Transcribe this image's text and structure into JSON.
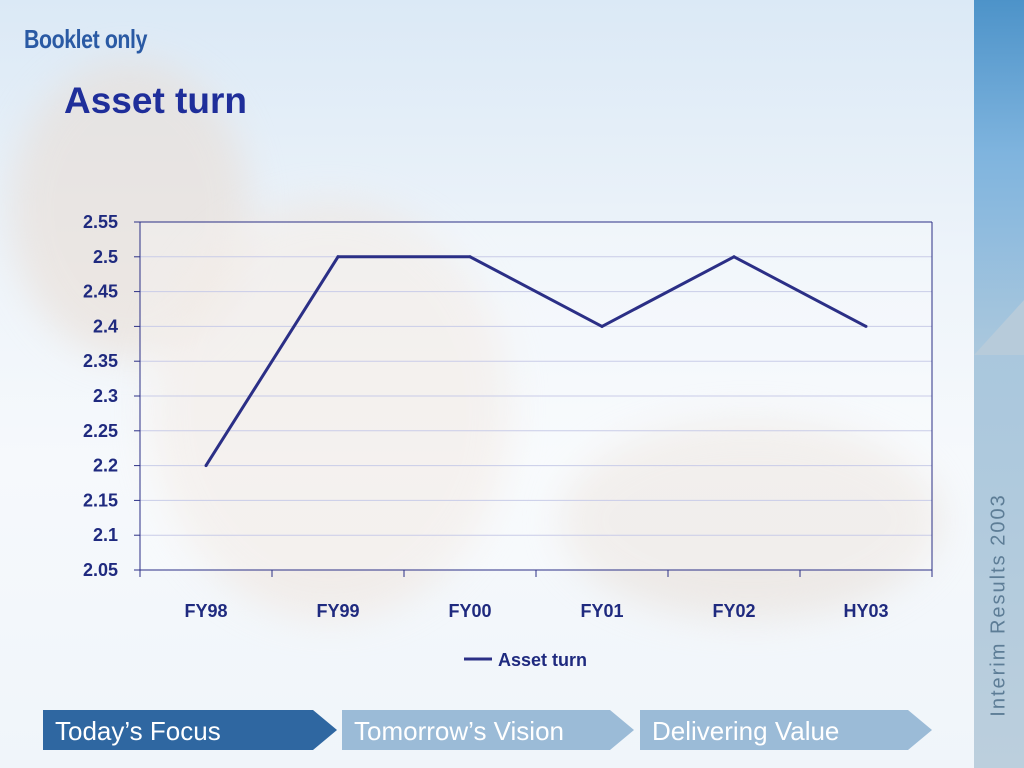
{
  "header": {
    "booklet_label": "Booklet only",
    "title": "Asset turn"
  },
  "side_banner": {
    "text": "Interim Results 2003"
  },
  "nav": [
    {
      "label": "Today’s Focus",
      "active": true
    },
    {
      "label": "Tomorrow’s Vision",
      "active": false
    },
    {
      "label": "Delivering Value",
      "active": false
    }
  ],
  "colors": {
    "title": "#1f2e9a",
    "series": "#2b2f86",
    "nav_active": "#2f67a1",
    "nav_inactive": "#9bbbd7",
    "side_band": "#7fb4de"
  },
  "chart_data": {
    "type": "line",
    "title": "Asset turn",
    "categories": [
      "FY98",
      "FY99",
      "FY00",
      "FY01",
      "FY02",
      "HY03"
    ],
    "series": [
      {
        "name": "Asset turn",
        "values": [
          2.2,
          2.5,
          2.5,
          2.4,
          2.5,
          2.4
        ]
      }
    ],
    "ylim": [
      2.05,
      2.55
    ],
    "ytick_step": 0.05,
    "yticks": [
      "2.55",
      "2.5",
      "2.45",
      "2.4",
      "2.35",
      "2.3",
      "2.25",
      "2.2",
      "2.15",
      "2.1",
      "2.05"
    ],
    "grid": true,
    "legend": "bottom"
  }
}
